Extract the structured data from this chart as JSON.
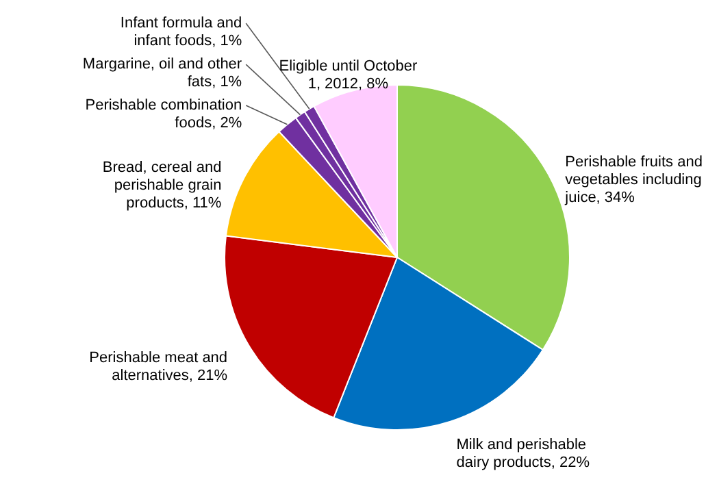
{
  "chart_data": {
    "type": "pie",
    "categories": [
      "Perishable fruits and vegetables including juice, 34%",
      "Milk and perishable dairy products, 22%",
      "Perishable meat and alternatives, 21%",
      "Bread, cereal and perishable grain products, 11%",
      "Perishable combination foods, 2%",
      "Margarine, oil and other fats, 1%",
      "Infant formula and infant foods, 1%",
      "Eligible until October 1, 2012, 8%"
    ],
    "values": [
      34,
      22,
      21,
      11,
      2,
      1,
      1,
      8
    ],
    "colors": [
      "#92d050",
      "#0070c0",
      "#c00000",
      "#ffc000",
      "#7030a0",
      "#7030a0",
      "#7030a0",
      "#ffccff"
    ]
  }
}
